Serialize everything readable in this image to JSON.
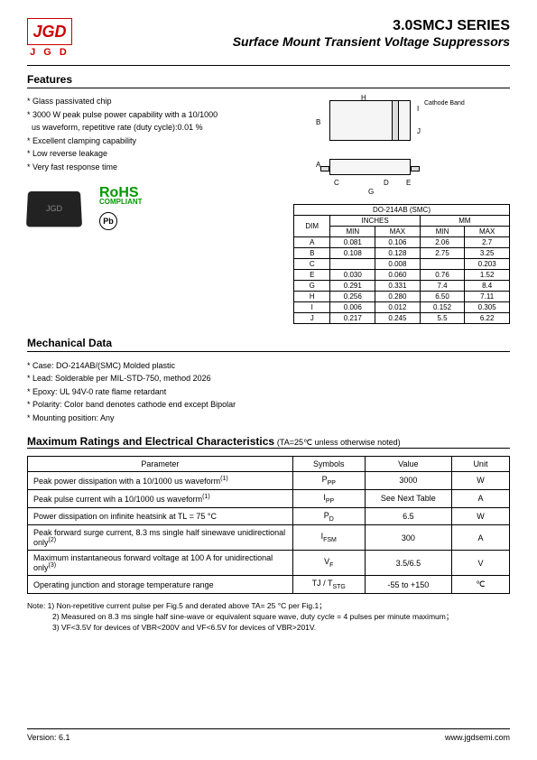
{
  "logo": {
    "text": "JGD",
    "sub": "J G D"
  },
  "title": {
    "line1": "3.0SMCJ SERIES",
    "line2": "Surface Mount Transient Voltage Suppressors"
  },
  "features": {
    "heading": "Features",
    "items": [
      "* Glass passivated chip",
      "* 3000 W peak pulse power capability with a 10/1000",
      "  us waveform, repetitive rate (duty cycle):0.01 %",
      "* Excellent clamping capability",
      "* Low reverse leakage",
      "* Very fast response time"
    ]
  },
  "diagram": {
    "cathode_label": "Cathode Band",
    "dims": [
      "H",
      "B",
      "I",
      "J",
      "A",
      "C",
      "D",
      "E",
      "G"
    ]
  },
  "rohs": {
    "text": "RoHS",
    "sub": "COMPLIANT",
    "pb": "Pb"
  },
  "dim_table": {
    "title": "DO-214AB (SMC)",
    "col_dim": "DIM",
    "col_in": "INCHES",
    "col_mm": "MM",
    "col_min": "MIN",
    "col_max": "MAX",
    "rows": [
      {
        "d": "A",
        "in_min": "0.081",
        "in_max": "0.106",
        "mm_min": "2.06",
        "mm_max": "2.7"
      },
      {
        "d": "B",
        "in_min": "0.108",
        "in_max": "0.128",
        "mm_min": "2.75",
        "mm_max": "3.25"
      },
      {
        "d": "C",
        "in_min": "",
        "in_max": "0.008",
        "mm_min": "",
        "mm_max": "0.203"
      },
      {
        "d": "E",
        "in_min": "0.030",
        "in_max": "0.060",
        "mm_min": "0.76",
        "mm_max": "1.52"
      },
      {
        "d": "G",
        "in_min": "0.291",
        "in_max": "0.331",
        "mm_min": "7.4",
        "mm_max": "8.4"
      },
      {
        "d": "H",
        "in_min": "0.256",
        "in_max": "0.280",
        "mm_min": "6.50",
        "mm_max": "7.11"
      },
      {
        "d": "I",
        "in_min": "0.006",
        "in_max": "0.012",
        "mm_min": "0.152",
        "mm_max": "0.305"
      },
      {
        "d": "J",
        "in_min": "0.217",
        "in_max": "0.245",
        "mm_min": "5.5",
        "mm_max": "6.22"
      }
    ]
  },
  "mechanical": {
    "heading": "Mechanical Data",
    "items": [
      "* Case: DO-214AB/(SMC) Molded plastic",
      "* Lead: Solderable per MIL-STD-750, method 2026",
      "* Epoxy: UL 94V-0 rate flame retardant",
      "* Polarity: Color band denotes cathode end except Bipolar",
      "* Mounting position: Any"
    ]
  },
  "ratings": {
    "heading": "Maximum Ratings and Electrical Characteristics",
    "cond": "(TA=25℃ unless otherwise noted)",
    "columns": [
      "Parameter",
      "Symbols",
      "Value",
      "Unit"
    ],
    "rows": [
      {
        "p": "Peak power dissipation with a 10/1000 us waveform",
        "sup": "(1)",
        "s": "P",
        "sub": "PP",
        "v": "3000",
        "u": "W"
      },
      {
        "p": "Peak pulse current wih a 10/1000 us waveform",
        "sup": "(1)",
        "s": "I",
        "sub": "PP",
        "v": "See Next Table",
        "u": "A"
      },
      {
        "p": "Power dissipation on infinite heatsink at TL = 75 °C",
        "sup": "",
        "s": "P",
        "sub": "D",
        "v": "6.5",
        "u": "W"
      },
      {
        "p": "Peak forward surge current, 8.3 ms single half sinewave unidirectional only",
        "sup": "(2)",
        "s": "I",
        "sub": "FSM",
        "v": "300",
        "u": "A"
      },
      {
        "p": "Maximum instantaneous forward voltage at 100 A for unidirectional only",
        "sup": "(3)",
        "s": "V",
        "sub": "F",
        "v": "3.5/6.5",
        "u": "V"
      },
      {
        "p": "Operating junction and storage temperature range",
        "sup": "",
        "s": "TJ / T",
        "sub": "STG",
        "v": "-55 to +150",
        "u": "℃"
      }
    ]
  },
  "notes": {
    "l1": "Note: 1) Non-repetitive current pulse per Fig.5 and derated above TA= 25 °C per Fig.1；",
    "l2": "2) Measured on 8.3 ms single half sine-wave or equivalent square wave, duty cycle = 4 pulses per minute maximum；",
    "l3": "3) VF<3.5V for devices of VBR<200V and VF<6.5V for devices of VBR>201V."
  },
  "footer": {
    "version": "Version: 6.1",
    "url": "www.jgdsemi.com"
  }
}
